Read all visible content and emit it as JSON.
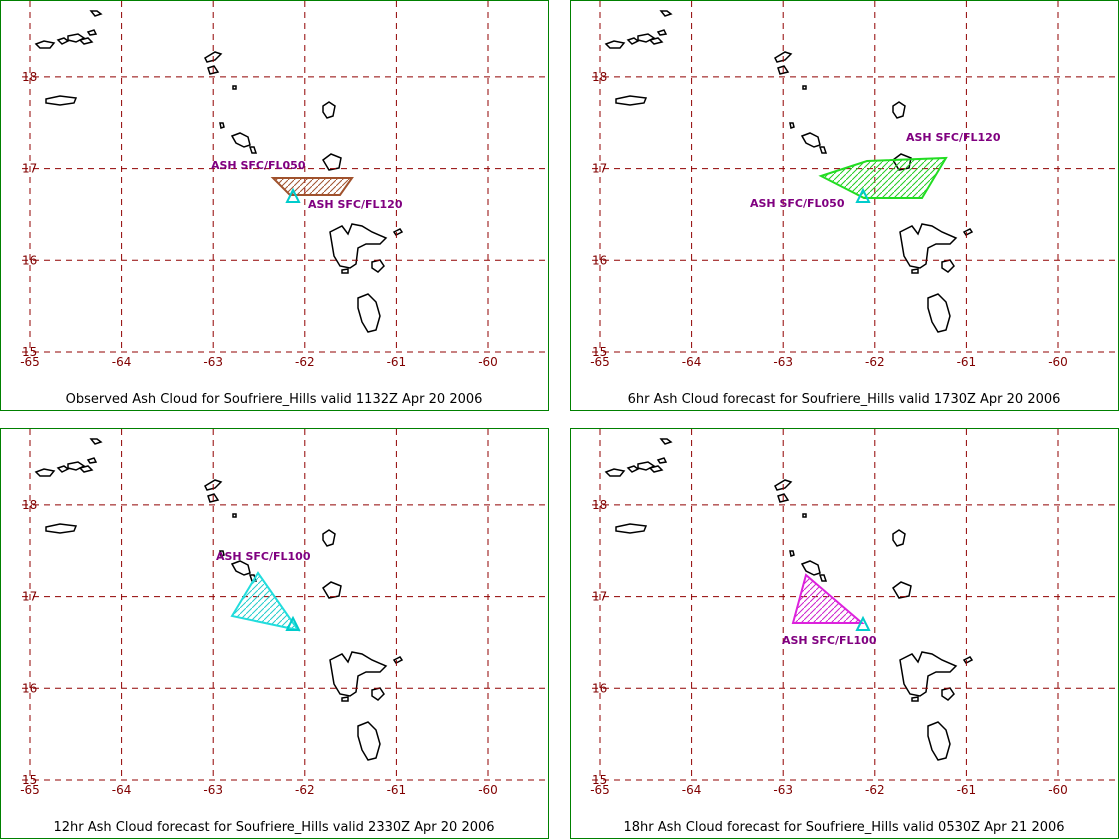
{
  "panels": [
    {
      "title": "Observed Ash Cloud for Soufriere_Hills valid 1132Z Apr 20 2006",
      "labels": [
        "ASH SFC/FL050",
        "ASH SFC/FL120"
      ]
    },
    {
      "title": "6hr Ash Cloud forecast for Soufriere_Hills valid 1730Z Apr 20 2006",
      "labels": [
        "ASH SFC/FL120",
        "ASH SFC/FL050"
      ]
    },
    {
      "title": "12hr Ash Cloud forecast for Soufriere_Hills valid 2330Z Apr 20 2006",
      "labels": [
        "ASH SFC/FL100"
      ]
    },
    {
      "title": "18hr Ash Cloud forecast for Soufriere_Hills valid 0530Z Apr 21 2006",
      "labels": [
        "ASH SFC/FL100"
      ]
    }
  ],
  "lat_ticks": [
    15,
    16,
    17,
    18
  ],
  "lon_ticks": [
    -65,
    -64,
    -63,
    -62,
    -61,
    -60
  ]
}
